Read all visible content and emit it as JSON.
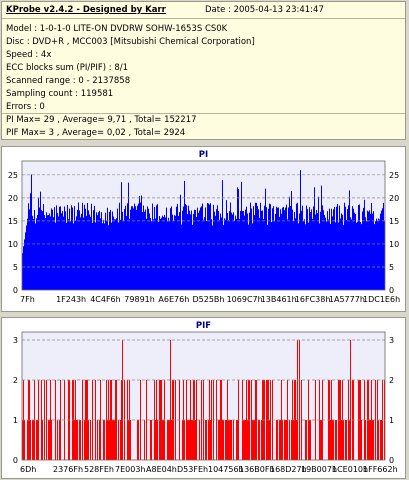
{
  "header": {
    "title": "KProbe v2.4.2 - Designed by Karr",
    "date": "Date : 2005-04-13 23:41:47"
  },
  "info_lines": [
    "Model : 1-0-1-0 LITE-ON DVDRW SOHW-1653S CS0K",
    "Disc : DVD+R , MCC003 [Mitsubishi Chemical Corporation]",
    "Speed : 4x",
    "ECC blocks sum (PI/PIF) : 8/1",
    "Scanned range : 0 - 2137858",
    "Sampling count : 119581",
    "Errors : 0",
    "PI Max= 29 , Average= 9,71 , Total= 152217",
    "PIF Max= 3 , Average= 0,02 , Total= 2924"
  ],
  "colors": {
    "bar": "#0000ff",
    "pif_bar": "#ff0000",
    "plot_bg": "#eeeefa",
    "title": "#00008b"
  },
  "chart_data": [
    {
      "type": "bar",
      "title": "PI",
      "ylim": [
        0,
        28
      ],
      "yticks": [
        0,
        5,
        10,
        15,
        20,
        25
      ],
      "xticks": [
        "7Fh",
        "1F243h",
        "4C4F6h",
        "79891h",
        "A6E76h",
        "D525Bh",
        "1069C7h",
        "13B461h",
        "16FC38h",
        "1A5777h",
        "1DC1E6h"
      ],
      "summary": {
        "max": 29,
        "average": 9.71,
        "total": 152217
      }
    },
    {
      "type": "bar",
      "title": "PIF",
      "ylim": [
        0,
        3.2
      ],
      "yticks": [
        0,
        1,
        2,
        3
      ],
      "xticks": [
        "6Dh",
        "2376Fh",
        "528FEh",
        "7E003h",
        "A8E04h",
        "D53FEh",
        "104756h",
        "136B0Fh",
        "168D27h",
        "19B007h",
        "1CE010h",
        "1FF662h"
      ],
      "summary": {
        "max": 3,
        "average": 0.02,
        "total": 2924
      }
    }
  ]
}
